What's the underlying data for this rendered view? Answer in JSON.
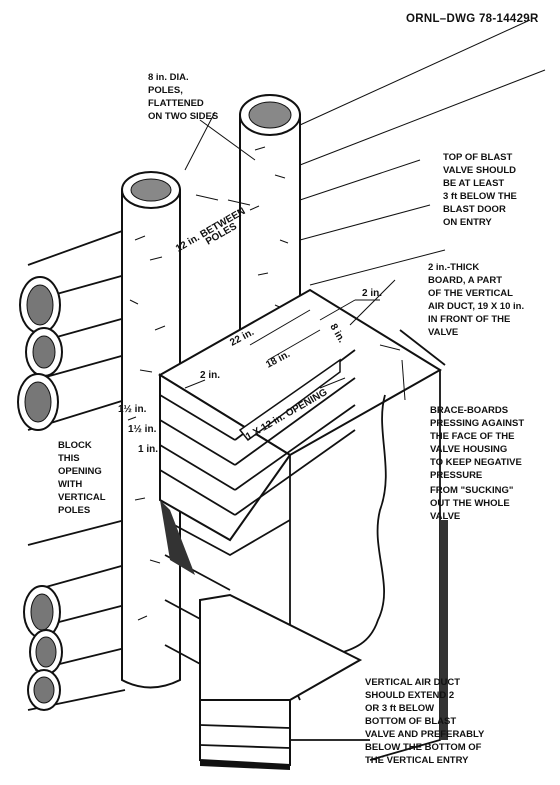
{
  "drawing_number": "ORNL–DWG 78-14429R",
  "labels": {
    "poles": [
      "8 in. DIA.",
      "POLES,",
      "FLATTENED",
      "ON TWO SIDES"
    ],
    "top_of_valve": [
      "TOP OF BLAST",
      "VALVE SHOULD",
      "BE AT LEAST",
      "3 ft BELOW THE",
      "BLAST DOOR",
      "ON ENTRY"
    ],
    "board": [
      "2 in.-THICK",
      "BOARD, A PART",
      "OF THE VERTICAL",
      "AIR DUCT, 19 X 10 in.",
      "IN FRONT OF THE",
      "VALVE"
    ],
    "brace": [
      "BRACE-BOARDS",
      "PRESSING AGAINST",
      "THE FACE OF THE",
      "VALVE HOUSING",
      "TO KEEP NEGATIVE",
      "PRESSURE",
      "FROM \"SUCKING\"",
      "OUT THE WHOLE",
      "VALVE"
    ],
    "block": [
      "BLOCK",
      "THIS",
      "OPENING",
      "WITH",
      "VERTICAL",
      "POLES"
    ],
    "air_duct": [
      "VERTICAL AIR DUCT",
      "SHOULD EXTEND 2",
      "OR 3 ft BELOW",
      "BOTTOM OF BLAST",
      "VALVE AND PREFERABLY",
      "BELOW THE BOTTOM OF",
      "THE VERTICAL ENTRY"
    ]
  },
  "dimensions": {
    "between_poles": [
      "12 in. BETWEEN",
      "POLES"
    ],
    "two_in_top": "2 in.",
    "eight_in": "8 in.",
    "twenty_two_in": "22 in.",
    "eighteen_in": "18 in.",
    "two_in_left": "2 in.",
    "opening": "1 X 12 in. OPENING",
    "one_half_a": "1½ in.",
    "one_half_b": "1½ in.",
    "one_in": "1 in."
  }
}
